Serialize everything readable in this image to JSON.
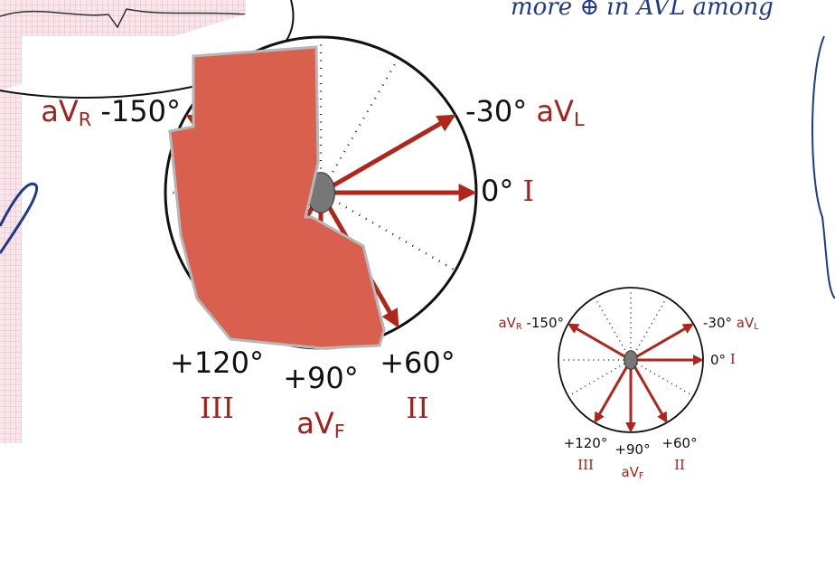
{
  "note": "more ⊕ in AVL among",
  "large_diagram": {
    "leads": [
      {
        "angle": "-150°",
        "name": "aV",
        "sub": "R"
      },
      {
        "angle": "-30°",
        "name": "aV",
        "sub": "L"
      },
      {
        "angle": "0°",
        "name": "I"
      },
      {
        "angle": "+60°",
        "name": "II"
      },
      {
        "angle": "+90°",
        "name": "aV",
        "sub": "F"
      },
      {
        "angle": "+120°",
        "name": "III"
      }
    ]
  },
  "small_diagram": {
    "leads": [
      {
        "angle": "-150°",
        "name": "aV",
        "sub": "R"
      },
      {
        "angle": "-30°",
        "name": "aV",
        "sub": "L"
      },
      {
        "angle": "0°",
        "name": "I"
      },
      {
        "angle": "+60°",
        "name": "II"
      },
      {
        "angle": "+90°",
        "name": "aV",
        "sub": "F"
      },
      {
        "angle": "+120°",
        "name": "III"
      }
    ]
  }
}
